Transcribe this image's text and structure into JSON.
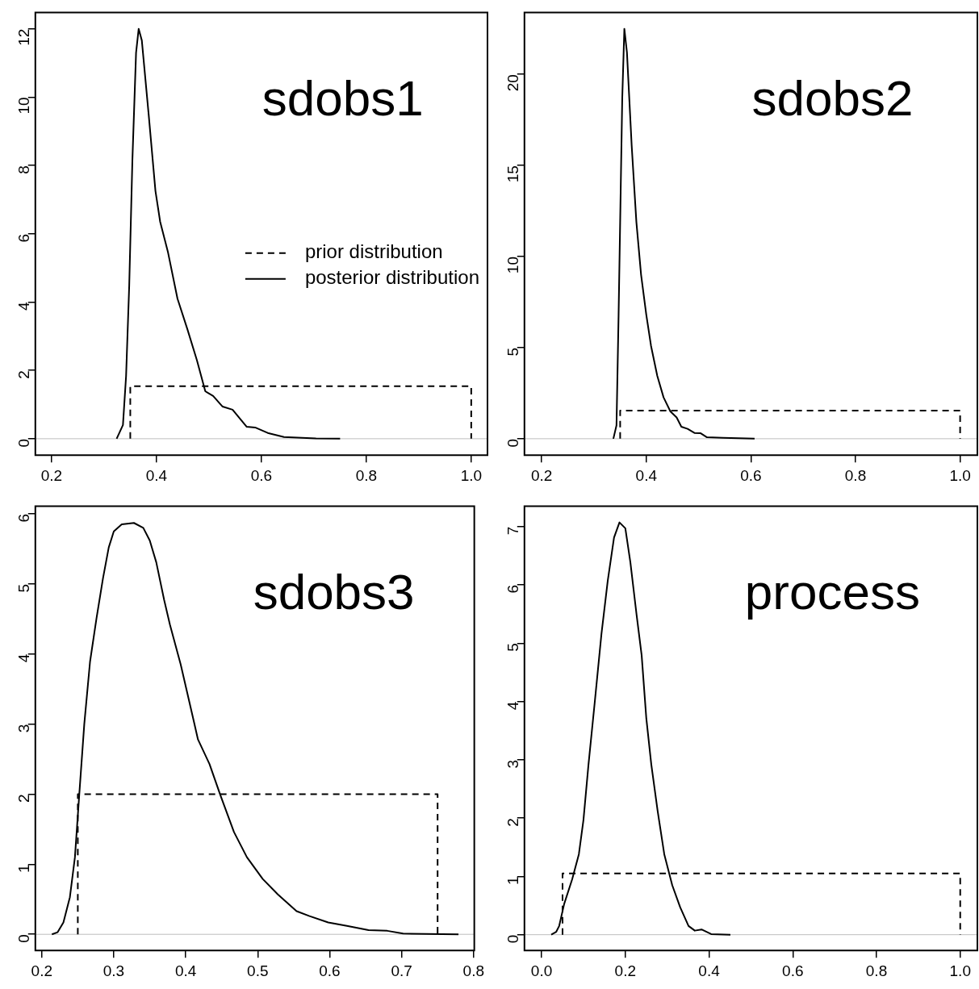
{
  "chart_data": [
    {
      "type": "line",
      "title": "sdobs1",
      "xlim": [
        0.169,
        1.031
      ],
      "xticks": [
        {
          "value": 0.2,
          "label": "0.2"
        },
        {
          "value": 0.4,
          "label": "0.4"
        },
        {
          "value": 0.6,
          "label": "0.6"
        },
        {
          "value": 0.8,
          "label": "0.8"
        },
        {
          "value": 1.0,
          "label": "1.0"
        }
      ],
      "ylim": [
        -0.48,
        12.48
      ],
      "yticks": [
        0,
        2,
        4,
        6,
        8,
        10,
        12
      ],
      "legend": "center right",
      "ref_lines": [
        {
          "axis": "y",
          "value": 0,
          "color": "#bebebe"
        }
      ],
      "series": [
        {
          "name": "prior distribution",
          "color": "#000000",
          "line_style": "dashed",
          "x": [
            0.35,
            0.35,
            1.0,
            1.0
          ],
          "values": [
            0,
            1.54,
            1.54,
            0
          ]
        },
        {
          "name": "posterior distribution",
          "color": "#000000",
          "line_style": "solid",
          "x": [
            0.324,
            0.336,
            0.342,
            0.348,
            0.354,
            0.361,
            0.366,
            0.372,
            0.385,
            0.398,
            0.407,
            0.422,
            0.44,
            0.459,
            0.477,
            0.493,
            0.508,
            0.526,
            0.545,
            0.572,
            0.588,
            0.612,
            0.643,
            0.704,
            0.75
          ],
          "values": [
            0,
            0.4,
            1.84,
            4.5,
            8.15,
            11.3,
            12.0,
            11.66,
            9.5,
            7.25,
            6.35,
            5.45,
            4.1,
            3.2,
            2.3,
            1.39,
            1.25,
            0.94,
            0.85,
            0.35,
            0.33,
            0.17,
            0.05,
            0.01,
            0
          ]
        }
      ]
    },
    {
      "type": "line",
      "title": "sdobs2",
      "xlim": [
        0.167,
        1.033
      ],
      "xticks": [
        {
          "value": 0.2,
          "label": "0.2"
        },
        {
          "value": 0.4,
          "label": "0.4"
        },
        {
          "value": 0.6,
          "label": "0.6"
        },
        {
          "value": 0.8,
          "label": "0.8"
        },
        {
          "value": 1.0,
          "label": "1.0"
        }
      ],
      "ylim": [
        -0.9,
        23.4
      ],
      "yticks": [
        0,
        5,
        10,
        15,
        20
      ],
      "ref_lines": [
        {
          "axis": "y",
          "value": 0,
          "color": "#bebebe"
        }
      ],
      "series": [
        {
          "color": "#000000",
          "line_style": "dashed",
          "x": [
            0.35,
            0.35,
            1.0,
            1.0
          ],
          "values": [
            0,
            1.54,
            1.54,
            0
          ]
        },
        {
          "color": "#000000",
          "line_style": "solid",
          "x": [
            0.337,
            0.343,
            0.347,
            0.35,
            0.354,
            0.358,
            0.363,
            0.372,
            0.381,
            0.39,
            0.4,
            0.409,
            0.421,
            0.433,
            0.446,
            0.458,
            0.467,
            0.479,
            0.492,
            0.504,
            0.516,
            0.547,
            0.607
          ],
          "values": [
            0,
            0.74,
            6.8,
            11.9,
            18.7,
            22.5,
            21.2,
            16.1,
            11.9,
            9.0,
            6.8,
            5.1,
            3.45,
            2.27,
            1.5,
            1.17,
            0.66,
            0.54,
            0.32,
            0.3,
            0.08,
            0.05,
            0
          ]
        }
      ]
    },
    {
      "type": "line",
      "title": "sdobs3",
      "xlim": [
        0.191,
        0.801
      ],
      "xticks": [
        {
          "value": 0.2,
          "label": "0.2"
        },
        {
          "value": 0.3,
          "label": "0.3"
        },
        {
          "value": 0.4,
          "label": "0.4"
        },
        {
          "value": 0.5,
          "label": "0.5"
        },
        {
          "value": 0.6,
          "label": "0.6"
        },
        {
          "value": 0.7,
          "label": "0.7"
        },
        {
          "value": 0.8,
          "label": "0.8"
        }
      ],
      "ylim": [
        -0.23,
        6.11
      ],
      "yticks": [
        0,
        1,
        2,
        3,
        4,
        5,
        6
      ],
      "ref_lines": [
        {
          "axis": "y",
          "value": 0,
          "color": "#bebebe"
        }
      ],
      "series": [
        {
          "color": "#000000",
          "line_style": "dashed",
          "x": [
            0.25,
            0.25,
            0.75,
            0.75
          ],
          "values": [
            0,
            2.0,
            2.0,
            0
          ]
        },
        {
          "color": "#000000",
          "line_style": "solid",
          "x": [
            0.214,
            0.222,
            0.23,
            0.239,
            0.246,
            0.252,
            0.259,
            0.267,
            0.276,
            0.285,
            0.293,
            0.3,
            0.311,
            0.328,
            0.341,
            0.35,
            0.359,
            0.37,
            0.378,
            0.393,
            0.402,
            0.411,
            0.417,
            0.433,
            0.448,
            0.467,
            0.485,
            0.507,
            0.528,
            0.554,
            0.572,
            0.598,
            0.624,
            0.654,
            0.68,
            0.702,
            0.779
          ],
          "values": [
            0,
            0.03,
            0.17,
            0.53,
            1.1,
            1.99,
            3.0,
            3.89,
            4.51,
            5.08,
            5.52,
            5.75,
            5.85,
            5.87,
            5.8,
            5.62,
            5.31,
            4.77,
            4.42,
            3.85,
            3.45,
            3.05,
            2.78,
            2.43,
            1.99,
            1.46,
            1.1,
            0.79,
            0.57,
            0.33,
            0.26,
            0.17,
            0.12,
            0.06,
            0.05,
            0.01,
            0
          ]
        }
      ]
    },
    {
      "type": "line",
      "title": "process",
      "xlim": [
        -0.041,
        1.041
      ],
      "xticks": [
        {
          "value": 0,
          "label": "0.0"
        },
        {
          "value": 0.2,
          "label": "0.2"
        },
        {
          "value": 0.4,
          "label": "0.4"
        },
        {
          "value": 0.6,
          "label": "0.6"
        },
        {
          "value": 0.8,
          "label": "0.8"
        },
        {
          "value": 1.0,
          "label": "1.0"
        }
      ],
      "ylim": [
        -0.27,
        7.35
      ],
      "yticks": [
        0,
        1,
        2,
        3,
        4,
        5,
        6,
        7
      ],
      "ref_lines": [
        {
          "axis": "y",
          "value": 0,
          "color": "#bebebe"
        }
      ],
      "series": [
        {
          "color": "#000000",
          "line_style": "dashed",
          "x": [
            0.05,
            0.05,
            1.0,
            1.0
          ],
          "values": [
            0,
            1.05,
            1.05,
            0
          ]
        },
        {
          "color": "#000000",
          "line_style": "solid",
          "x": [
            0.023,
            0.035,
            0.042,
            0.054,
            0.073,
            0.089,
            0.1,
            0.112,
            0.127,
            0.143,
            0.158,
            0.173,
            0.186,
            0.2,
            0.212,
            0.227,
            0.239,
            0.25,
            0.262,
            0.277,
            0.293,
            0.312,
            0.331,
            0.351,
            0.366,
            0.382,
            0.405,
            0.451
          ],
          "values": [
            0,
            0.05,
            0.15,
            0.53,
            0.95,
            1.38,
            1.97,
            2.92,
            3.99,
            5.16,
            6.07,
            6.81,
            7.07,
            6.97,
            6.39,
            5.48,
            4.79,
            3.72,
            2.92,
            2.13,
            1.38,
            0.85,
            0.47,
            0.15,
            0.07,
            0.09,
            0.01,
            0
          ]
        }
      ]
    }
  ]
}
